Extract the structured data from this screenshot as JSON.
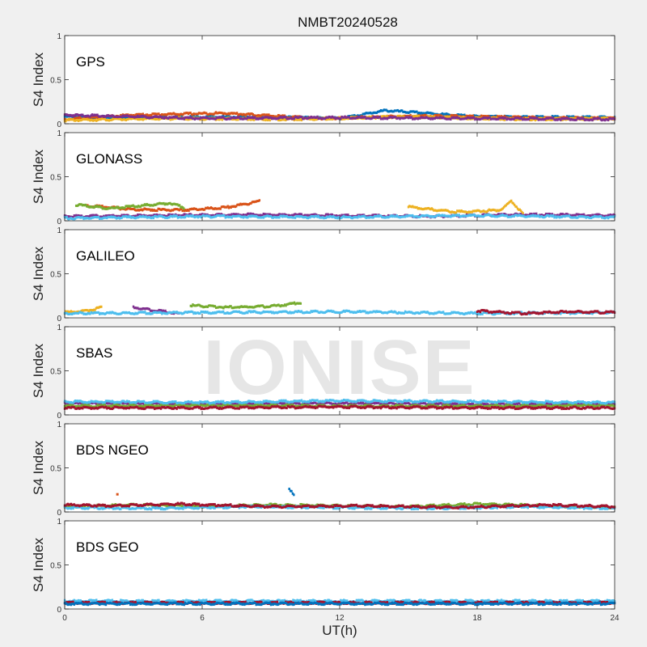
{
  "title": "NMBT20240528",
  "xlabel": "UT(h)",
  "ylabel": "S4 Index",
  "watermark": "IONISE",
  "colors": [
    "#0072bd",
    "#d95319",
    "#edb120",
    "#7e2f8e",
    "#77ac30",
    "#4dbeee",
    "#a2142f"
  ],
  "chart_data": {
    "type": "scatter",
    "xlim": [
      0,
      24
    ],
    "xticks": [
      0,
      6,
      12,
      18,
      24
    ],
    "ylim": [
      0,
      1
    ],
    "yticks": [
      0,
      0.5,
      1
    ],
    "ytick_labels": [
      "0",
      "0.5",
      "1"
    ],
    "grid": false,
    "panels": [
      {
        "label": "GPS",
        "series": [
          {
            "x": [
              0,
              4,
              8,
              12,
              14,
              18,
              24
            ],
            "y": [
              0.08,
              0.07,
              0.08,
              0.06,
              0.15,
              0.08,
              0.07
            ]
          },
          {
            "x": [
              0,
              3,
              7,
              11,
              16,
              20,
              24
            ],
            "y": [
              0.05,
              0.1,
              0.12,
              0.06,
              0.09,
              0.07,
              0.06
            ]
          },
          {
            "x": [
              0,
              5,
              10,
              15,
              20,
              24
            ],
            "y": [
              0.04,
              0.06,
              0.05,
              0.08,
              0.05,
              0.06
            ]
          },
          {
            "x": [
              0,
              6,
              12,
              18,
              24
            ],
            "y": [
              0.1,
              0.06,
              0.07,
              0.06,
              0.05
            ]
          }
        ]
      },
      {
        "label": "GLONASS",
        "series": [
          {
            "x": [
              1,
              3,
              5,
              7,
              8.5
            ],
            "y": [
              0.17,
              0.13,
              0.12,
              0.15,
              0.22
            ]
          },
          {
            "x": [
              15,
              17,
              19,
              19.5,
              20
            ],
            "y": [
              0.16,
              0.1,
              0.12,
              0.22,
              0.08
            ]
          },
          {
            "x": [
              0,
              4,
              8,
              12,
              16,
              20,
              24
            ],
            "y": [
              0.05,
              0.06,
              0.07,
              0.06,
              0.05,
              0.07,
              0.06
            ]
          },
          {
            "x": [
              0.5,
              2,
              4.6,
              5.2
            ],
            "y": [
              0.18,
              0.14,
              0.2,
              0.15
            ]
          },
          {
            "x": [
              0,
              6,
              12,
              18,
              24
            ],
            "y": [
              0.03,
              0.05,
              0.04,
              0.06,
              0.04
            ]
          }
        ]
      },
      {
        "label": "GALILEO",
        "series": [
          {
            "x": [
              0,
              1,
              1.6
            ],
            "y": [
              0.06,
              0.08,
              0.12
            ]
          },
          {
            "x": [
              3,
              4,
              5
            ],
            "y": [
              0.12,
              0.08,
              0.05
            ]
          },
          {
            "x": [
              5.5,
              7,
              9,
              10.3
            ],
            "y": [
              0.14,
              0.12,
              0.13,
              0.17
            ]
          },
          {
            "x": [
              0,
              6,
              12,
              18,
              24
            ],
            "y": [
              0.05,
              0.06,
              0.07,
              0.05,
              0.06
            ]
          },
          {
            "x": [
              18,
              20,
              22,
              24
            ],
            "y": [
              0.08,
              0.05,
              0.07,
              0.06
            ]
          }
        ]
      },
      {
        "label": "SBAS",
        "series": [
          {
            "x": [
              0,
              6,
              12,
              18,
              24
            ],
            "y": [
              0.13,
              0.12,
              0.13,
              0.12,
              0.12
            ]
          },
          {
            "x": [
              0,
              6,
              12,
              18,
              24
            ],
            "y": [
              0.1,
              0.11,
              0.1,
              0.1,
              0.11
            ]
          },
          {
            "x": [
              0,
              6,
              12,
              18,
              24
            ],
            "y": [
              0.15,
              0.14,
              0.16,
              0.15,
              0.14
            ]
          },
          {
            "x": [
              0,
              6,
              12,
              18,
              24
            ],
            "y": [
              0.08,
              0.08,
              0.09,
              0.08,
              0.08
            ]
          }
        ]
      },
      {
        "label": "BDS NGEO",
        "series": [
          {
            "x": [
              0,
              3,
              6,
              9,
              12,
              15,
              18,
              21,
              24
            ],
            "y": [
              0.06,
              0.08,
              0.06,
              0.08,
              0.07,
              0.06,
              0.09,
              0.07,
              0.05
            ]
          },
          {
            "x": [
              0,
              4,
              8,
              12,
              16,
              20,
              24
            ],
            "y": [
              0.05,
              0.04,
              0.06,
              0.05,
              0.04,
              0.06,
              0.04
            ]
          },
          {
            "x": [
              0,
              2,
              5,
              9,
              13,
              17,
              21,
              24
            ],
            "y": [
              0.08,
              0.07,
              0.09,
              0.06,
              0.07,
              0.05,
              0.08,
              0.06
            ]
          },
          {
            "x": [
              9.8,
              10
            ],
            "y": [
              0.25,
              0.2
            ]
          },
          {
            "x": [
              2.3
            ],
            "y": [
              0.2
            ]
          }
        ]
      },
      {
        "label": "BDS GEO",
        "series": [
          {
            "x": [
              0,
              6,
              12,
              18,
              24
            ],
            "y": [
              0.09,
              0.09,
              0.09,
              0.09,
              0.09
            ]
          },
          {
            "x": [
              0,
              6,
              12,
              18,
              24
            ],
            "y": [
              0.07,
              0.07,
              0.07,
              0.07,
              0.07
            ]
          },
          {
            "x": [
              0,
              6,
              12,
              18,
              24
            ],
            "y": [
              0.06,
              0.06,
              0.06,
              0.06,
              0.06
            ]
          }
        ]
      }
    ]
  }
}
